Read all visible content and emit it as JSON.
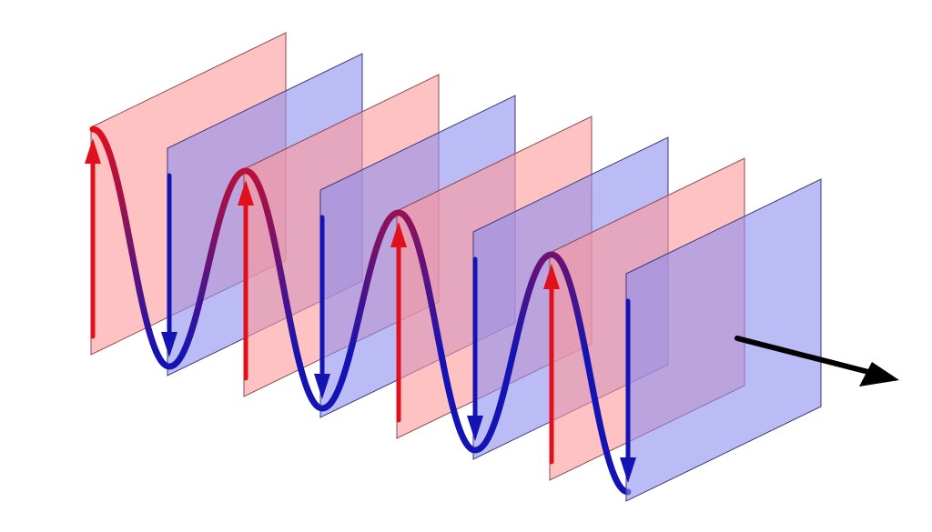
{
  "diagram": {
    "colors": {
      "background": "#ffffff",
      "red_plane_fill": "#ff9a9a",
      "red_plane_stroke": "#8a4a4a",
      "blue_plane_fill": "#8e8ef0",
      "blue_plane_stroke": "#3a3a7a",
      "red_arrow": "#e0101c",
      "blue_arrow": "#1414b4",
      "wave_gradient_start": "#e0101c",
      "wave_gradient_end": "#1414b4",
      "direction_arrow": "#000000"
    },
    "wavefront_count": 8,
    "wavefront_sequence": [
      "crest",
      "trough",
      "crest",
      "trough",
      "crest",
      "trough",
      "crest",
      "trough"
    ],
    "field_vector_sequence": [
      "up",
      "down",
      "up",
      "down",
      "up",
      "down",
      "up",
      "down"
    ],
    "icons": {
      "propagation": "arrow-right-icon"
    }
  }
}
